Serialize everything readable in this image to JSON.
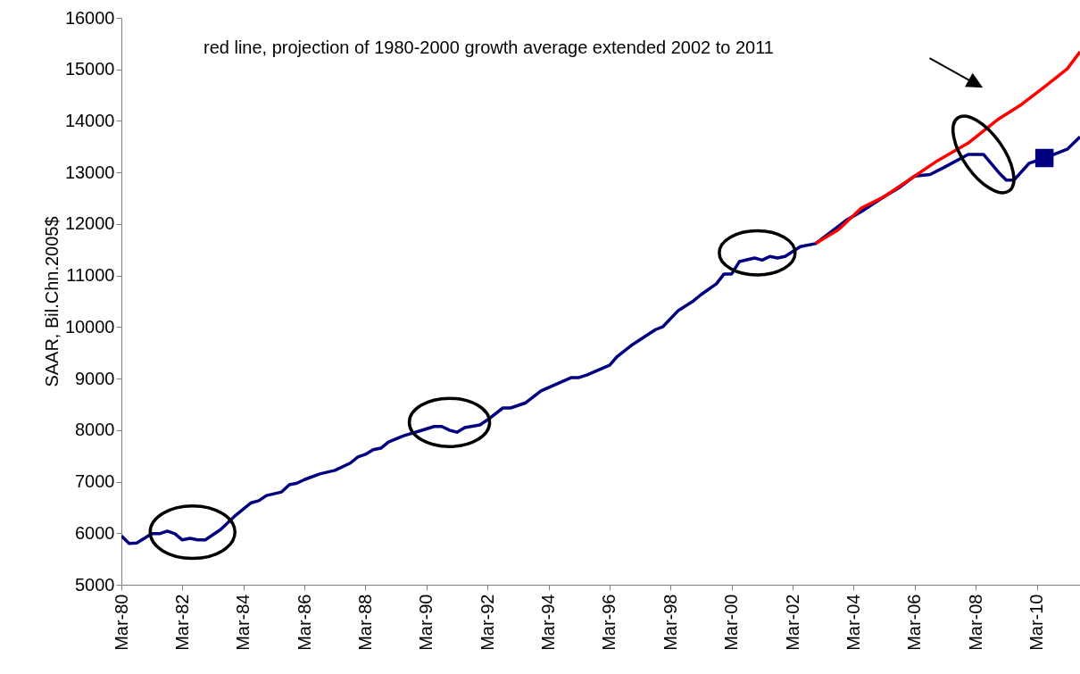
{
  "chart_data": {
    "type": "line",
    "ylabel": "SAAR, Bil.Chn.2005$",
    "annotations": [
      "red line, projection of 1980-2000 growth average extended 2002 to 2011"
    ],
    "xlim": [
      "1980-03",
      "2011-08"
    ],
    "ylim": [
      5000,
      16000
    ],
    "yticks": [
      5000,
      6000,
      7000,
      8000,
      9000,
      10000,
      11000,
      12000,
      13000,
      14000,
      15000,
      16000
    ],
    "xticks": [
      {
        "value": "1980-03",
        "label": "Mar-80"
      },
      {
        "value": "1982-03",
        "label": "Mar-82"
      },
      {
        "value": "1984-03",
        "label": "Mar-84"
      },
      {
        "value": "1986-03",
        "label": "Mar-86"
      },
      {
        "value": "1988-03",
        "label": "Mar-88"
      },
      {
        "value": "1990-03",
        "label": "Mar-90"
      },
      {
        "value": "1992-03",
        "label": "Mar-92"
      },
      {
        "value": "1994-03",
        "label": "Mar-94"
      },
      {
        "value": "1996-03",
        "label": "Mar-96"
      },
      {
        "value": "1998-03",
        "label": "Mar-98"
      },
      {
        "value": "2000-03",
        "label": "Mar-00"
      },
      {
        "value": "2002-03",
        "label": "Mar-02"
      },
      {
        "value": "2004-03",
        "label": "Mar-04"
      },
      {
        "value": "2006-03",
        "label": "Mar-06"
      },
      {
        "value": "2008-03",
        "label": "Mar-08"
      },
      {
        "value": "2010-03",
        "label": "Mar-10"
      }
    ],
    "grid": false,
    "series": [
      {
        "color": "#000080",
        "x": [
          "1980-03",
          "1980-06",
          "1980-09",
          "1981-03",
          "1981-06",
          "1981-09",
          "1981-12",
          "1982-03",
          "1982-06",
          "1982-09",
          "1982-12",
          "1983-06",
          "1983-12",
          "1984-06",
          "1984-09",
          "1984-12",
          "1985-06",
          "1985-09",
          "1985-12",
          "1986-03",
          "1986-09",
          "1987-03",
          "1987-09",
          "1987-12",
          "1988-03",
          "1988-06",
          "1988-09",
          "1988-12",
          "1989-06",
          "1989-12",
          "1990-06",
          "1990-09",
          "1990-12",
          "1991-03",
          "1991-06",
          "1991-12",
          "1992-03",
          "1992-09",
          "1992-12",
          "1993-06",
          "1993-12",
          "1994-12",
          "1995-03",
          "1995-06",
          "1996-03",
          "1996-06",
          "1996-12",
          "1997-09",
          "1997-12",
          "1998-06",
          "1998-12",
          "1999-03",
          "1999-09",
          "1999-12",
          "2000-03",
          "2000-06",
          "2000-12",
          "2001-03",
          "2001-06",
          "2001-09",
          "2001-12",
          "2002-06",
          "2002-12",
          "2003-12",
          "2004-06",
          "2005-03",
          "2005-09",
          "2006-03",
          "2006-09",
          "2007-03",
          "2007-12",
          "2008-06",
          "2008-12",
          "2009-03",
          "2009-06",
          "2009-12",
          "2010-06",
          "2011-03",
          "2011-08"
        ],
        "values": [
          5950,
          5800,
          5810,
          5990,
          5990,
          6040,
          5990,
          5870,
          5900,
          5870,
          5870,
          6070,
          6350,
          6590,
          6630,
          6730,
          6800,
          6940,
          6970,
          7040,
          7150,
          7220,
          7360,
          7480,
          7530,
          7620,
          7650,
          7770,
          7890,
          7980,
          8070,
          8070,
          8000,
          7960,
          8050,
          8100,
          8200,
          8430,
          8430,
          8530,
          8760,
          9020,
          9020,
          9070,
          9260,
          9430,
          9660,
          9950,
          10010,
          10320,
          10510,
          10630,
          10840,
          11030,
          11030,
          11270,
          11340,
          11300,
          11370,
          11340,
          11370,
          11560,
          11620,
          12070,
          12240,
          12530,
          12710,
          12930,
          12960,
          13110,
          13350,
          13350,
          13000,
          12850,
          12850,
          13180,
          13280,
          13450,
          13690
        ]
      },
      {
        "color": "#ff0000",
        "x": [
          "2002-12",
          "2003-09",
          "2004-06",
          "2005-03",
          "2006-03",
          "2006-12",
          "2007-12",
          "2008-12",
          "2009-09",
          "2010-06",
          "2011-03",
          "2011-08"
        ],
        "values": [
          11620,
          11890,
          12310,
          12530,
          12930,
          13230,
          13570,
          14040,
          14320,
          14660,
          15010,
          15340
        ]
      },
      {
        "type": "scatter",
        "marker": "square",
        "color": "#000080",
        "x": [
          "2010-06"
        ],
        "values": [
          13280
        ]
      }
    ]
  }
}
